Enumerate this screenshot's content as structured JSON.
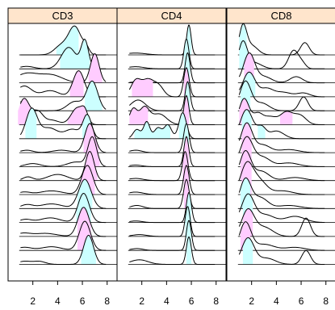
{
  "chart_data": {
    "type": "area",
    "panels": [
      "CD3",
      "CD4",
      "CD8"
    ],
    "x_ticks": [
      2,
      4,
      6,
      8
    ],
    "xlim": [
      0,
      8.8
    ],
    "rows": 16,
    "colors": {
      "strip": "#ffe5cc",
      "cyan_fill": "#ccffff",
      "pink_fill": "#ffccff",
      "line": "#000000"
    },
    "density_components": {
      "CD3": [
        [
          [
            4.3,
            0.55,
            0.3
          ],
          [
            5.4,
            0.5,
            0.9
          ],
          [
            6.3,
            0.25,
            0.2
          ]
        ],
        [
          [
            4.9,
            0.6,
            0.7
          ],
          [
            6.2,
            0.3,
            0.9
          ],
          [
            1.5,
            0.6,
            0.08
          ]
        ],
        [
          [
            1.5,
            0.9,
            0.3
          ],
          [
            3.5,
            0.9,
            0.25
          ],
          [
            7.0,
            0.35,
            0.95
          ]
        ],
        [
          [
            1.3,
            0.6,
            0.35
          ],
          [
            3.4,
            0.7,
            0.2
          ],
          [
            5.7,
            0.45,
            0.85
          ]
        ],
        [
          [
            1.1,
            0.45,
            0.3
          ],
          [
            5.4,
            0.6,
            0.3
          ],
          [
            6.8,
            0.45,
            0.95
          ]
        ],
        [
          [
            1.3,
            0.45,
            0.85
          ],
          [
            2.4,
            0.4,
            0.4
          ],
          [
            3.5,
            0.6,
            0.15
          ],
          [
            5.6,
            0.5,
            0.55
          ],
          [
            6.2,
            0.25,
            0.3
          ]
        ],
        [
          [
            1.9,
            0.45,
            0.95
          ],
          [
            3.3,
            0.7,
            0.35
          ],
          [
            5.2,
            0.6,
            0.3
          ],
          [
            6.4,
            0.35,
            0.75
          ]
        ],
        [
          [
            1.5,
            0.5,
            0.08
          ],
          [
            4.3,
            0.7,
            0.08
          ],
          [
            6.6,
            0.4,
            0.95
          ]
        ],
        [
          [
            2.0,
            0.6,
            0.1
          ],
          [
            5.5,
            0.7,
            0.15
          ],
          [
            6.8,
            0.35,
            0.95
          ]
        ],
        [
          [
            1.6,
            0.4,
            0.12
          ],
          [
            4.0,
            0.8,
            0.2
          ],
          [
            6.6,
            0.35,
            0.95
          ]
        ],
        [
          [
            1.3,
            0.5,
            0.08
          ],
          [
            3.5,
            0.9,
            0.12
          ],
          [
            6.4,
            0.45,
            0.95
          ]
        ],
        [
          [
            1.5,
            0.5,
            0.12
          ],
          [
            3.5,
            0.9,
            0.15
          ],
          [
            6.2,
            0.5,
            0.95
          ]
        ],
        [
          [
            1.4,
            0.5,
            0.1
          ],
          [
            3.4,
            0.8,
            0.15
          ],
          [
            6.1,
            0.45,
            0.95
          ]
        ],
        [
          [
            1.2,
            0.6,
            0.1
          ],
          [
            3.0,
            0.9,
            0.1
          ],
          [
            6.1,
            0.45,
            0.95
          ]
        ],
        [
          [
            1.3,
            0.6,
            0.1
          ],
          [
            3.5,
            0.8,
            0.12
          ],
          [
            6.2,
            0.45,
            0.95
          ]
        ],
        [
          [
            1.3,
            0.5,
            0.1
          ],
          [
            2.5,
            0.5,
            0.1
          ],
          [
            6.5,
            0.4,
            0.95
          ]
        ]
      ],
      "CD4": [
        [
          [
            1.5,
            0.8,
            0.06
          ],
          [
            5.8,
            0.18,
            0.98
          ]
        ],
        [
          [
            1.5,
            0.7,
            0.07
          ],
          [
            5.6,
            0.2,
            0.98
          ]
        ],
        [
          [
            5.7,
            0.2,
            0.98
          ],
          [
            2.0,
            0.6,
            0.05
          ]
        ],
        [
          [
            1.5,
            0.4,
            0.5
          ],
          [
            2.5,
            0.5,
            0.55
          ],
          [
            3.4,
            0.4,
            0.3
          ],
          [
            5.6,
            0.22,
            0.95
          ]
        ],
        [
          [
            1.7,
            0.6,
            0.35
          ],
          [
            5.7,
            0.2,
            0.95
          ]
        ],
        [
          [
            1.3,
            0.3,
            0.5
          ],
          [
            2.2,
            0.4,
            0.55
          ],
          [
            3.4,
            0.6,
            0.35
          ],
          [
            5.6,
            0.2,
            0.95
          ]
        ],
        [
          [
            1.6,
            0.3,
            0.3
          ],
          [
            2.4,
            0.25,
            0.55
          ],
          [
            3.3,
            0.3,
            0.35
          ],
          [
            4.1,
            0.3,
            0.45
          ],
          [
            5.3,
            0.3,
            0.85
          ]
        ],
        [
          [
            1.5,
            0.5,
            0.08
          ],
          [
            5.6,
            0.22,
            0.95
          ]
        ],
        [
          [
            1.5,
            0.5,
            0.05
          ],
          [
            5.6,
            0.2,
            0.98
          ]
        ],
        [
          [
            1.5,
            0.6,
            0.07
          ],
          [
            5.5,
            0.22,
            0.95
          ]
        ],
        [
          [
            1.5,
            0.6,
            0.08
          ],
          [
            5.6,
            0.22,
            0.95
          ]
        ],
        [
          [
            1.6,
            0.5,
            0.1
          ],
          [
            5.6,
            0.22,
            0.95
          ]
        ],
        [
          [
            1.5,
            0.5,
            0.05
          ],
          [
            5.8,
            0.2,
            0.98
          ]
        ],
        [
          [
            1.8,
            0.6,
            0.06
          ],
          [
            5.7,
            0.2,
            0.98
          ]
        ],
        [
          [
            1.6,
            0.5,
            0.06
          ],
          [
            5.8,
            0.2,
            0.98
          ]
        ],
        [
          [
            1.8,
            0.7,
            0.15
          ],
          [
            5.8,
            0.2,
            0.9
          ]
        ]
      ],
      "CD8": [
        [
          [
            1.3,
            0.3,
            0.9
          ],
          [
            2.0,
            0.5,
            0.3
          ],
          [
            6.3,
            0.35,
            0.4
          ]
        ],
        [
          [
            1.3,
            0.35,
            0.85
          ],
          [
            2.2,
            0.6,
            0.2
          ],
          [
            5.4,
            0.4,
            0.6
          ],
          [
            6.1,
            0.3,
            0.15
          ]
        ],
        [
          [
            1.8,
            0.45,
            0.95
          ],
          [
            3.0,
            0.6,
            0.2
          ],
          [
            5.6,
            0.5,
            0.2
          ]
        ],
        [
          [
            1.8,
            0.5,
            0.8
          ],
          [
            3.2,
            0.5,
            0.25
          ],
          [
            4.5,
            0.7,
            0.15
          ],
          [
            6.2,
            0.5,
            0.12
          ]
        ],
        [
          [
            1.5,
            0.45,
            0.95
          ],
          [
            2.8,
            0.6,
            0.25
          ],
          [
            6.2,
            0.35,
            0.45
          ]
        ],
        [
          [
            1.4,
            0.4,
            0.85
          ],
          [
            2.5,
            0.4,
            0.35
          ],
          [
            3.5,
            0.5,
            0.25
          ],
          [
            4.8,
            0.5,
            0.4
          ],
          [
            5.9,
            0.5,
            0.3
          ]
        ],
        [
          [
            1.6,
            0.5,
            0.95
          ],
          [
            2.8,
            0.35,
            0.35
          ],
          [
            4.0,
            0.6,
            0.25
          ]
        ],
        [
          [
            1.6,
            0.45,
            0.95
          ],
          [
            2.9,
            0.6,
            0.25
          ],
          [
            5.0,
            0.8,
            0.1
          ]
        ],
        [
          [
            1.6,
            0.5,
            0.95
          ],
          [
            2.9,
            0.6,
            0.3
          ],
          [
            5.0,
            0.8,
            0.12
          ]
        ],
        [
          [
            1.5,
            0.45,
            0.95
          ],
          [
            2.8,
            0.6,
            0.3
          ],
          [
            5.5,
            0.8,
            0.1
          ]
        ],
        [
          [
            1.6,
            0.5,
            0.95
          ],
          [
            2.6,
            0.6,
            0.45
          ],
          [
            4.5,
            0.8,
            0.12
          ]
        ],
        [
          [
            1.5,
            0.45,
            0.95
          ],
          [
            2.7,
            0.6,
            0.35
          ],
          [
            5.0,
            0.9,
            0.1
          ]
        ],
        [
          [
            1.7,
            0.5,
            0.9
          ],
          [
            3.1,
            0.7,
            0.25
          ],
          [
            5.5,
            0.8,
            0.2
          ]
        ],
        [
          [
            1.7,
            0.5,
            0.85
          ],
          [
            3.0,
            0.7,
            0.3
          ],
          [
            6.4,
            0.35,
            0.6
          ]
        ],
        [
          [
            1.5,
            0.45,
            0.9
          ],
          [
            3.0,
            0.8,
            0.2
          ],
          [
            5.5,
            0.8,
            0.1
          ]
        ],
        [
          [
            1.7,
            0.5,
            0.85
          ],
          [
            3.2,
            0.7,
            0.2
          ],
          [
            6.4,
            0.35,
            0.45
          ]
        ]
      ]
    },
    "fill_ranges": {
      "CD3": [
        [
          [
            [
              3.9,
              5.7
            ],
            "cyan"
          ]
        ],
        [
          [
            [
              4.2,
              6.6
            ],
            "cyan"
          ]
        ],
        [
          [
            [
              6.5,
              7.6
            ],
            "pink"
          ]
        ],
        [
          [
            [
              5.0,
              6.1
            ],
            "pink"
          ]
        ],
        [
          [
            [
              6.2,
              7.6
            ],
            "cyan"
          ]
        ],
        [
          [
            [
              0.8,
              1.9
            ],
            "pink"
          ],
          [
            [
              4.8,
              6.3
            ],
            "pink"
          ]
        ],
        [
          [
            [
              1.4,
              2.3
            ],
            "cyan"
          ],
          [
            [
              6.0,
              6.9
            ],
            "cyan"
          ]
        ],
        [
          [
            [
              6.1,
              7.3
            ],
            "pink"
          ]
        ],
        [
          [
            [
              6.3,
              7.4
            ],
            "pink"
          ]
        ],
        [
          [
            [
              6.1,
              7.2
            ],
            "pink"
          ]
        ],
        [
          [
            [
              5.9,
              7.0
            ],
            "pink"
          ]
        ],
        [
          [
            [
              5.6,
              6.8
            ],
            "cyan"
          ]
        ],
        [
          [
            [
              5.5,
              6.7
            ],
            "cyan"
          ]
        ],
        [
          [
            [
              5.6,
              6.7
            ],
            "pink"
          ]
        ],
        [
          [
            [
              5.6,
              6.8
            ],
            "pink"
          ]
        ],
        [
          [
            [
              5.9,
              7.1
            ],
            "cyan"
          ]
        ]
      ],
      "CD4": [
        [
          [
            [
              5.6,
              6.0
            ],
            "cyan"
          ]
        ],
        [
          [
            [
              5.4,
              5.8
            ],
            "cyan"
          ]
        ],
        [
          [
            [
              5.5,
              5.9
            ],
            "cyan"
          ]
        ],
        [
          [
            [
              1.2,
              2.9
            ],
            "pink"
          ],
          [
            [
              5.4,
              5.8
            ],
            "pink"
          ]
        ],
        [
          [
            [
              5.5,
              5.9
            ],
            "cyan"
          ]
        ],
        [
          [
            [
              1.0,
              2.5
            ],
            "pink"
          ],
          [
            [
              5.4,
              5.8
            ],
            "pink"
          ]
        ],
        [
          [
            [
              1.4,
              4.3
            ],
            "cyan"
          ],
          [
            [
              5.0,
              5.6
            ],
            "cyan"
          ]
        ],
        [
          [
            [
              5.4,
              5.8
            ],
            "cyan"
          ]
        ],
        [
          [
            [
              5.4,
              5.8
            ],
            "pink"
          ]
        ],
        [
          [
            [
              5.3,
              5.7
            ],
            "pink"
          ]
        ],
        [
          [
            [
              5.4,
              5.8
            ],
            "pink"
          ]
        ],
        [
          [
            [
              5.4,
              5.8
            ],
            "pink"
          ]
        ],
        [
          [
            [
              5.6,
              6.0
            ],
            "cyan"
          ]
        ],
        [
          [
            [
              5.5,
              5.9
            ],
            "cyan"
          ]
        ],
        [
          [
            [
              5.6,
              6.0
            ],
            "cyan"
          ]
        ],
        [
          [
            [
              5.6,
              6.0
            ],
            "cyan"
          ]
        ]
      ],
      "CD8": [
        [
          [
            [
              1.0,
              1.6
            ],
            "cyan"
          ]
        ],
        [
          [
            [
              1.0,
              1.7
            ],
            "cyan"
          ]
        ],
        [
          [
            [
              1.4,
              2.2
            ],
            "pink"
          ]
        ],
        [
          [
            [
              1.3,
              2.3
            ],
            "cyan"
          ]
        ],
        [
          [
            [
              1.1,
              1.9
            ],
            "cyan"
          ]
        ],
        [
          [
            [
              1.0,
              1.8
            ],
            "pink"
          ],
          [
            [
              4.3,
              5.3
            ],
            "pink"
          ]
        ],
        [
          [
            [
              1.2,
              2.0
            ],
            "cyan"
          ],
          [
            [
              2.5,
              3.1
            ],
            "cyan"
          ]
        ],
        [
          [
            [
              1.2,
              2.0
            ],
            "pink"
          ]
        ],
        [
          [
            [
              1.2,
              2.0
            ],
            "pink"
          ]
        ],
        [
          [
            [
              1.1,
              1.9
            ],
            "pink"
          ]
        ],
        [
          [
            [
              1.2,
              2.0
            ],
            "pink"
          ]
        ],
        [
          [
            [
              1.1,
              1.9
            ],
            "cyan"
          ]
        ],
        [
          [
            [
              1.3,
              2.1
            ],
            "cyan"
          ]
        ],
        [
          [
            [
              1.3,
              2.1
            ],
            "pink"
          ]
        ],
        [
          [
            [
              1.1,
              1.9
            ],
            "pink"
          ]
        ],
        [
          [
            [
              1.3,
              2.1
            ],
            "cyan"
          ]
        ]
      ]
    }
  }
}
